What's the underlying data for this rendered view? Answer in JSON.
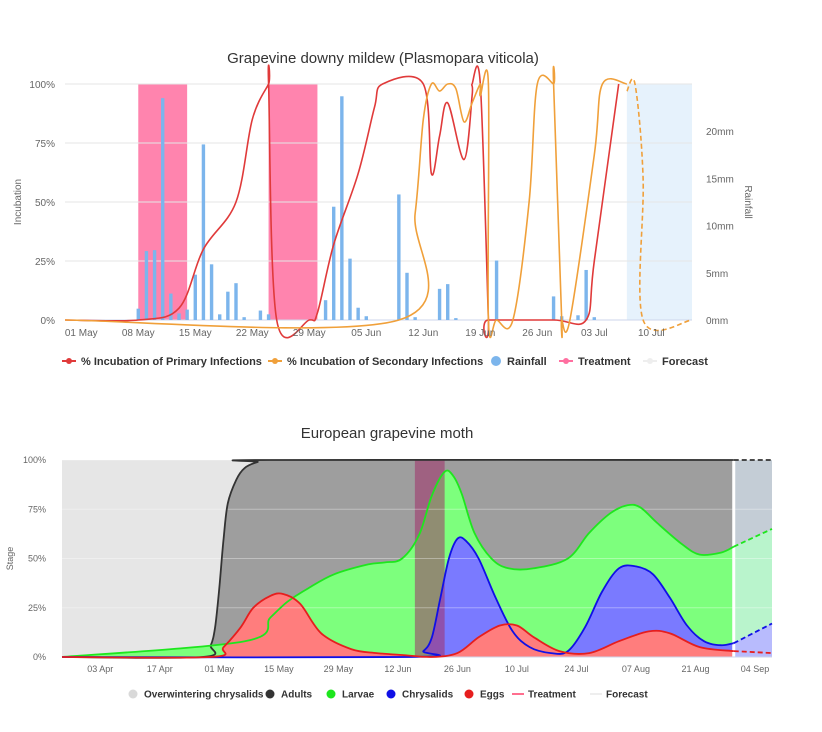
{
  "chart_data": [
    {
      "type": "line",
      "title": "Grapevine downy mildew (Plasmopara viticola)",
      "ylabel": "Incubation",
      "y2label": "Rainfall",
      "x_start": "2023-04-29",
      "x_end": "2023-07-15",
      "xticks": [
        "01 May",
        "08 May",
        "15 May",
        "22 May",
        "29 May",
        "05 Jun",
        "12 Jun",
        "19 Jun",
        "26 Jun",
        "03 Jul",
        "10 Jul"
      ],
      "xtick_dates": [
        "2023-05-01",
        "2023-05-08",
        "2023-05-15",
        "2023-05-22",
        "2023-05-29",
        "2023-06-05",
        "2023-06-12",
        "2023-06-19",
        "2023-06-26",
        "2023-07-03",
        "2023-07-10"
      ],
      "yticks": [
        "0%",
        "25%",
        "50%",
        "75%",
        "100%"
      ],
      "ytick_values": [
        0,
        25,
        50,
        75,
        100
      ],
      "ylim": [
        0,
        100
      ],
      "y2ticks": [
        "0mm",
        "5mm",
        "10mm",
        "15mm",
        "20mm"
      ],
      "y2tick_values": [
        0,
        5,
        10,
        15,
        20
      ],
      "y2lim": [
        0,
        25
      ],
      "legend_position": "bottom",
      "legend": [
        "% Incubation of Primary Infections",
        "% Incubation of Secondary Infections",
        "Rainfall",
        "Treatment",
        "Forecast"
      ],
      "colors": {
        "primary": "#e03a3a",
        "secondary": "#f0a03a",
        "rainfall": "#7cb5ec",
        "treatment": "#ff6fa0",
        "forecast": "#e6f2fc",
        "grid": "#e6e6e6"
      },
      "treatment_bands": [
        [
          "2023-05-08",
          "2023-05-14"
        ],
        [
          "2023-05-24",
          "2023-05-30"
        ]
      ],
      "forecast_band": [
        "2023-07-07",
        "2023-07-15"
      ],
      "series": [
        {
          "name": "% Incubation of Primary Infections",
          "x": [
            "2023-04-29",
            "2023-05-08",
            "2023-05-13",
            "2023-05-16",
            "2023-05-20",
            "2023-05-22",
            "2023-05-24",
            "2023-05-24",
            "2023-05-25",
            "2023-05-29",
            "2023-05-30",
            "2023-06-01",
            "2023-06-04",
            "2023-06-06",
            "2023-06-07",
            "2023-06-12",
            "2023-06-13",
            "2023-06-14",
            "2023-06-15",
            "2023-06-17",
            "2023-06-18",
            "2023-06-18",
            "2023-06-19",
            "2023-06-20",
            "2023-06-20",
            "2023-06-28",
            "2023-07-02",
            "2023-07-03",
            "2023-07-06"
          ],
          "y": [
            0,
            0,
            5,
            30,
            50,
            85,
            100,
            100,
            0,
            0,
            3,
            32,
            62,
            90,
            100,
            100,
            62,
            78,
            92,
            68,
            95,
            100,
            100,
            0,
            0,
            0,
            0,
            25,
            100
          ]
        },
        {
          "name": "% Incubation of Secondary Infections",
          "x": [
            "2023-04-29",
            "2023-06-09",
            "2023-06-11",
            "2023-06-12",
            "2023-06-13",
            "2023-06-14",
            "2023-06-15",
            "2023-06-16",
            "2023-06-17",
            "2023-06-18",
            "2023-06-19",
            "2023-06-19",
            "2023-06-20",
            "2023-06-20",
            "2023-06-21",
            "2023-06-23",
            "2023-06-25",
            "2023-06-26",
            "2023-06-28",
            "2023-06-28",
            "2023-06-29",
            "2023-06-29",
            "2023-06-30",
            "2023-07-03",
            "2023-07-04",
            "2023-07-07"
          ],
          "y": [
            0,
            0,
            45,
            85,
            100,
            97,
            100,
            98,
            84,
            92,
            100,
            95,
            100,
            0,
            0,
            0,
            50,
            100,
            100,
            100,
            0,
            0,
            0,
            70,
            100,
            100
          ]
        },
        {
          "name": "Forecast (Secondary)",
          "x": [
            "2023-07-07",
            "2023-07-08",
            "2023-07-09",
            "2023-07-09",
            "2023-07-15"
          ],
          "y": [
            97,
            100,
            60,
            0,
            0
          ]
        },
        {
          "name": "Rainfall",
          "type": "bar",
          "x": [
            "2023-05-08",
            "2023-05-09",
            "2023-05-10",
            "2023-05-11",
            "2023-05-12",
            "2023-05-13",
            "2023-05-14",
            "2023-05-15",
            "2023-05-16",
            "2023-05-17",
            "2023-05-18",
            "2023-05-19",
            "2023-05-20",
            "2023-05-21",
            "2023-05-23",
            "2023-05-24",
            "2023-05-31",
            "2023-06-01",
            "2023-06-02",
            "2023-06-03",
            "2023-06-04",
            "2023-06-05",
            "2023-06-09",
            "2023-06-10",
            "2023-06-11",
            "2023-06-14",
            "2023-06-15",
            "2023-06-16",
            "2023-06-21",
            "2023-06-28",
            "2023-06-29",
            "2023-07-01",
            "2023-07-02",
            "2023-07-03"
          ],
          "y": [
            1.2,
            7.3,
            7.4,
            23.5,
            2.8,
            0.7,
            1.1,
            4.8,
            18.6,
            5.9,
            0.6,
            3.0,
            3.9,
            0.3,
            1.0,
            0.6,
            2.1,
            12.0,
            23.7,
            6.5,
            1.3,
            0.4,
            13.3,
            5.0,
            0.3,
            3.3,
            3.8,
            0.2,
            6.3,
            2.5,
            0.4,
            0.5,
            5.3,
            0.3
          ]
        }
      ]
    },
    {
      "type": "area",
      "title": "European grapevine moth",
      "ylabel": "Stage",
      "x_start": "2023-03-25",
      "x_end": "2023-09-08",
      "xticks": [
        "03 Apr",
        "17 Apr",
        "01 May",
        "15 May",
        "29 May",
        "12 Jun",
        "26 Jun",
        "10 Jul",
        "24 Jul",
        "07 Aug",
        "21 Aug",
        "04 Sep"
      ],
      "xtick_dates": [
        "2023-04-03",
        "2023-04-17",
        "2023-05-01",
        "2023-05-15",
        "2023-05-29",
        "2023-06-12",
        "2023-06-26",
        "2023-07-10",
        "2023-07-24",
        "2023-08-07",
        "2023-08-21",
        "2023-09-04"
      ],
      "yticks": [
        "0%",
        "25%",
        "50%",
        "75%",
        "100%"
      ],
      "ytick_values": [
        0,
        25,
        50,
        75,
        100
      ],
      "ylim": [
        0,
        100
      ],
      "legend_position": "bottom",
      "legend": [
        "Overwintering chrysalids",
        "Adults",
        "Larvae",
        "Chrysalids",
        "Eggs",
        "Treatment",
        "Forecast"
      ],
      "colors": {
        "overwintering": "#e6e6e6",
        "adults": "#9e9e9e",
        "larvae": "#7dff7d",
        "chrysalids": "#7a7aff",
        "eggs": "#ff7d7d",
        "treatment": "#a0306a",
        "forecast": "#dbe9f7",
        "adults_line": "#333333",
        "larvae_line": "#1ee61e",
        "chrysalids_line": "#1010e6",
        "eggs_line": "#e61e1e",
        "grid": "#e6e6e6"
      },
      "treatment_band": [
        "2023-06-16",
        "2023-06-23"
      ],
      "forecast_start": "2023-08-30",
      "series": [
        {
          "name": "Adults",
          "x": [
            "2023-03-25",
            "2023-04-27",
            "2023-04-29",
            "2023-04-30",
            "2023-05-01",
            "2023-05-02",
            "2023-05-03",
            "2023-05-05",
            "2023-05-07",
            "2023-05-10",
            "2023-05-13",
            "2023-09-08"
          ],
          "y": [
            0,
            0,
            6,
            15,
            35,
            60,
            78,
            90,
            96,
            99,
            100,
            100
          ]
        },
        {
          "name": "Larvae",
          "x": [
            "2023-03-25",
            "2023-05-07",
            "2023-05-13",
            "2023-05-17",
            "2023-05-22",
            "2023-05-28",
            "2023-06-05",
            "2023-06-09",
            "2023-06-13",
            "2023-06-17",
            "2023-06-20",
            "2023-06-23",
            "2023-06-25",
            "2023-06-27",
            "2023-06-30",
            "2023-07-04",
            "2023-07-08",
            "2023-07-14",
            "2023-07-22",
            "2023-07-27",
            "2023-08-01",
            "2023-08-05",
            "2023-08-08",
            "2023-08-12",
            "2023-08-18",
            "2023-08-22",
            "2023-08-27",
            "2023-08-30"
          ],
          "y": [
            0,
            8,
            20,
            28,
            35,
            42,
            47,
            48,
            50,
            62,
            82,
            94,
            92,
            83,
            63,
            50,
            45,
            45,
            50,
            63,
            73,
            77,
            76,
            68,
            57,
            52,
            53,
            56
          ]
        },
        {
          "name": "Chrysalids",
          "x": [
            "2023-03-25",
            "2023-06-15",
            "2023-06-18",
            "2023-06-20",
            "2023-06-22",
            "2023-06-24",
            "2023-06-26",
            "2023-06-28",
            "2023-07-01",
            "2023-07-05",
            "2023-07-09",
            "2023-07-13",
            "2023-07-18",
            "2023-07-22",
            "2023-07-26",
            "2023-07-30",
            "2023-08-03",
            "2023-08-07",
            "2023-08-11",
            "2023-08-15",
            "2023-08-19",
            "2023-08-23",
            "2023-08-27",
            "2023-08-30"
          ],
          "y": [
            0,
            0,
            3,
            10,
            30,
            50,
            60,
            59,
            50,
            30,
            13,
            5,
            2,
            3,
            15,
            33,
            45,
            46,
            42,
            30,
            16,
            8,
            6,
            7
          ]
        },
        {
          "name": "Eggs",
          "x": [
            "2023-03-25",
            "2023-04-29",
            "2023-05-02",
            "2023-05-06",
            "2023-05-09",
            "2023-05-13",
            "2023-05-16",
            "2023-05-20",
            "2023-05-25",
            "2023-06-01",
            "2023-06-07",
            "2023-06-13",
            "2023-06-20",
            "2023-06-26",
            "2023-07-01",
            "2023-07-06",
            "2023-07-10",
            "2023-07-14",
            "2023-07-20",
            "2023-07-27",
            "2023-08-03",
            "2023-08-10",
            "2023-08-15",
            "2023-08-22",
            "2023-08-30"
          ],
          "y": [
            0,
            0,
            5,
            15,
            25,
            31,
            32,
            27,
            12,
            4,
            2,
            1,
            0,
            2,
            10,
            16,
            16,
            10,
            3,
            2,
            8,
            13,
            12,
            5,
            3
          ]
        },
        {
          "name": "Forecast",
          "x": [
            "2023-08-30",
            "2023-09-08"
          ],
          "larvae": [
            56,
            65
          ],
          "chrysalids": [
            7,
            17
          ],
          "eggs": [
            3,
            2
          ]
        }
      ]
    }
  ]
}
